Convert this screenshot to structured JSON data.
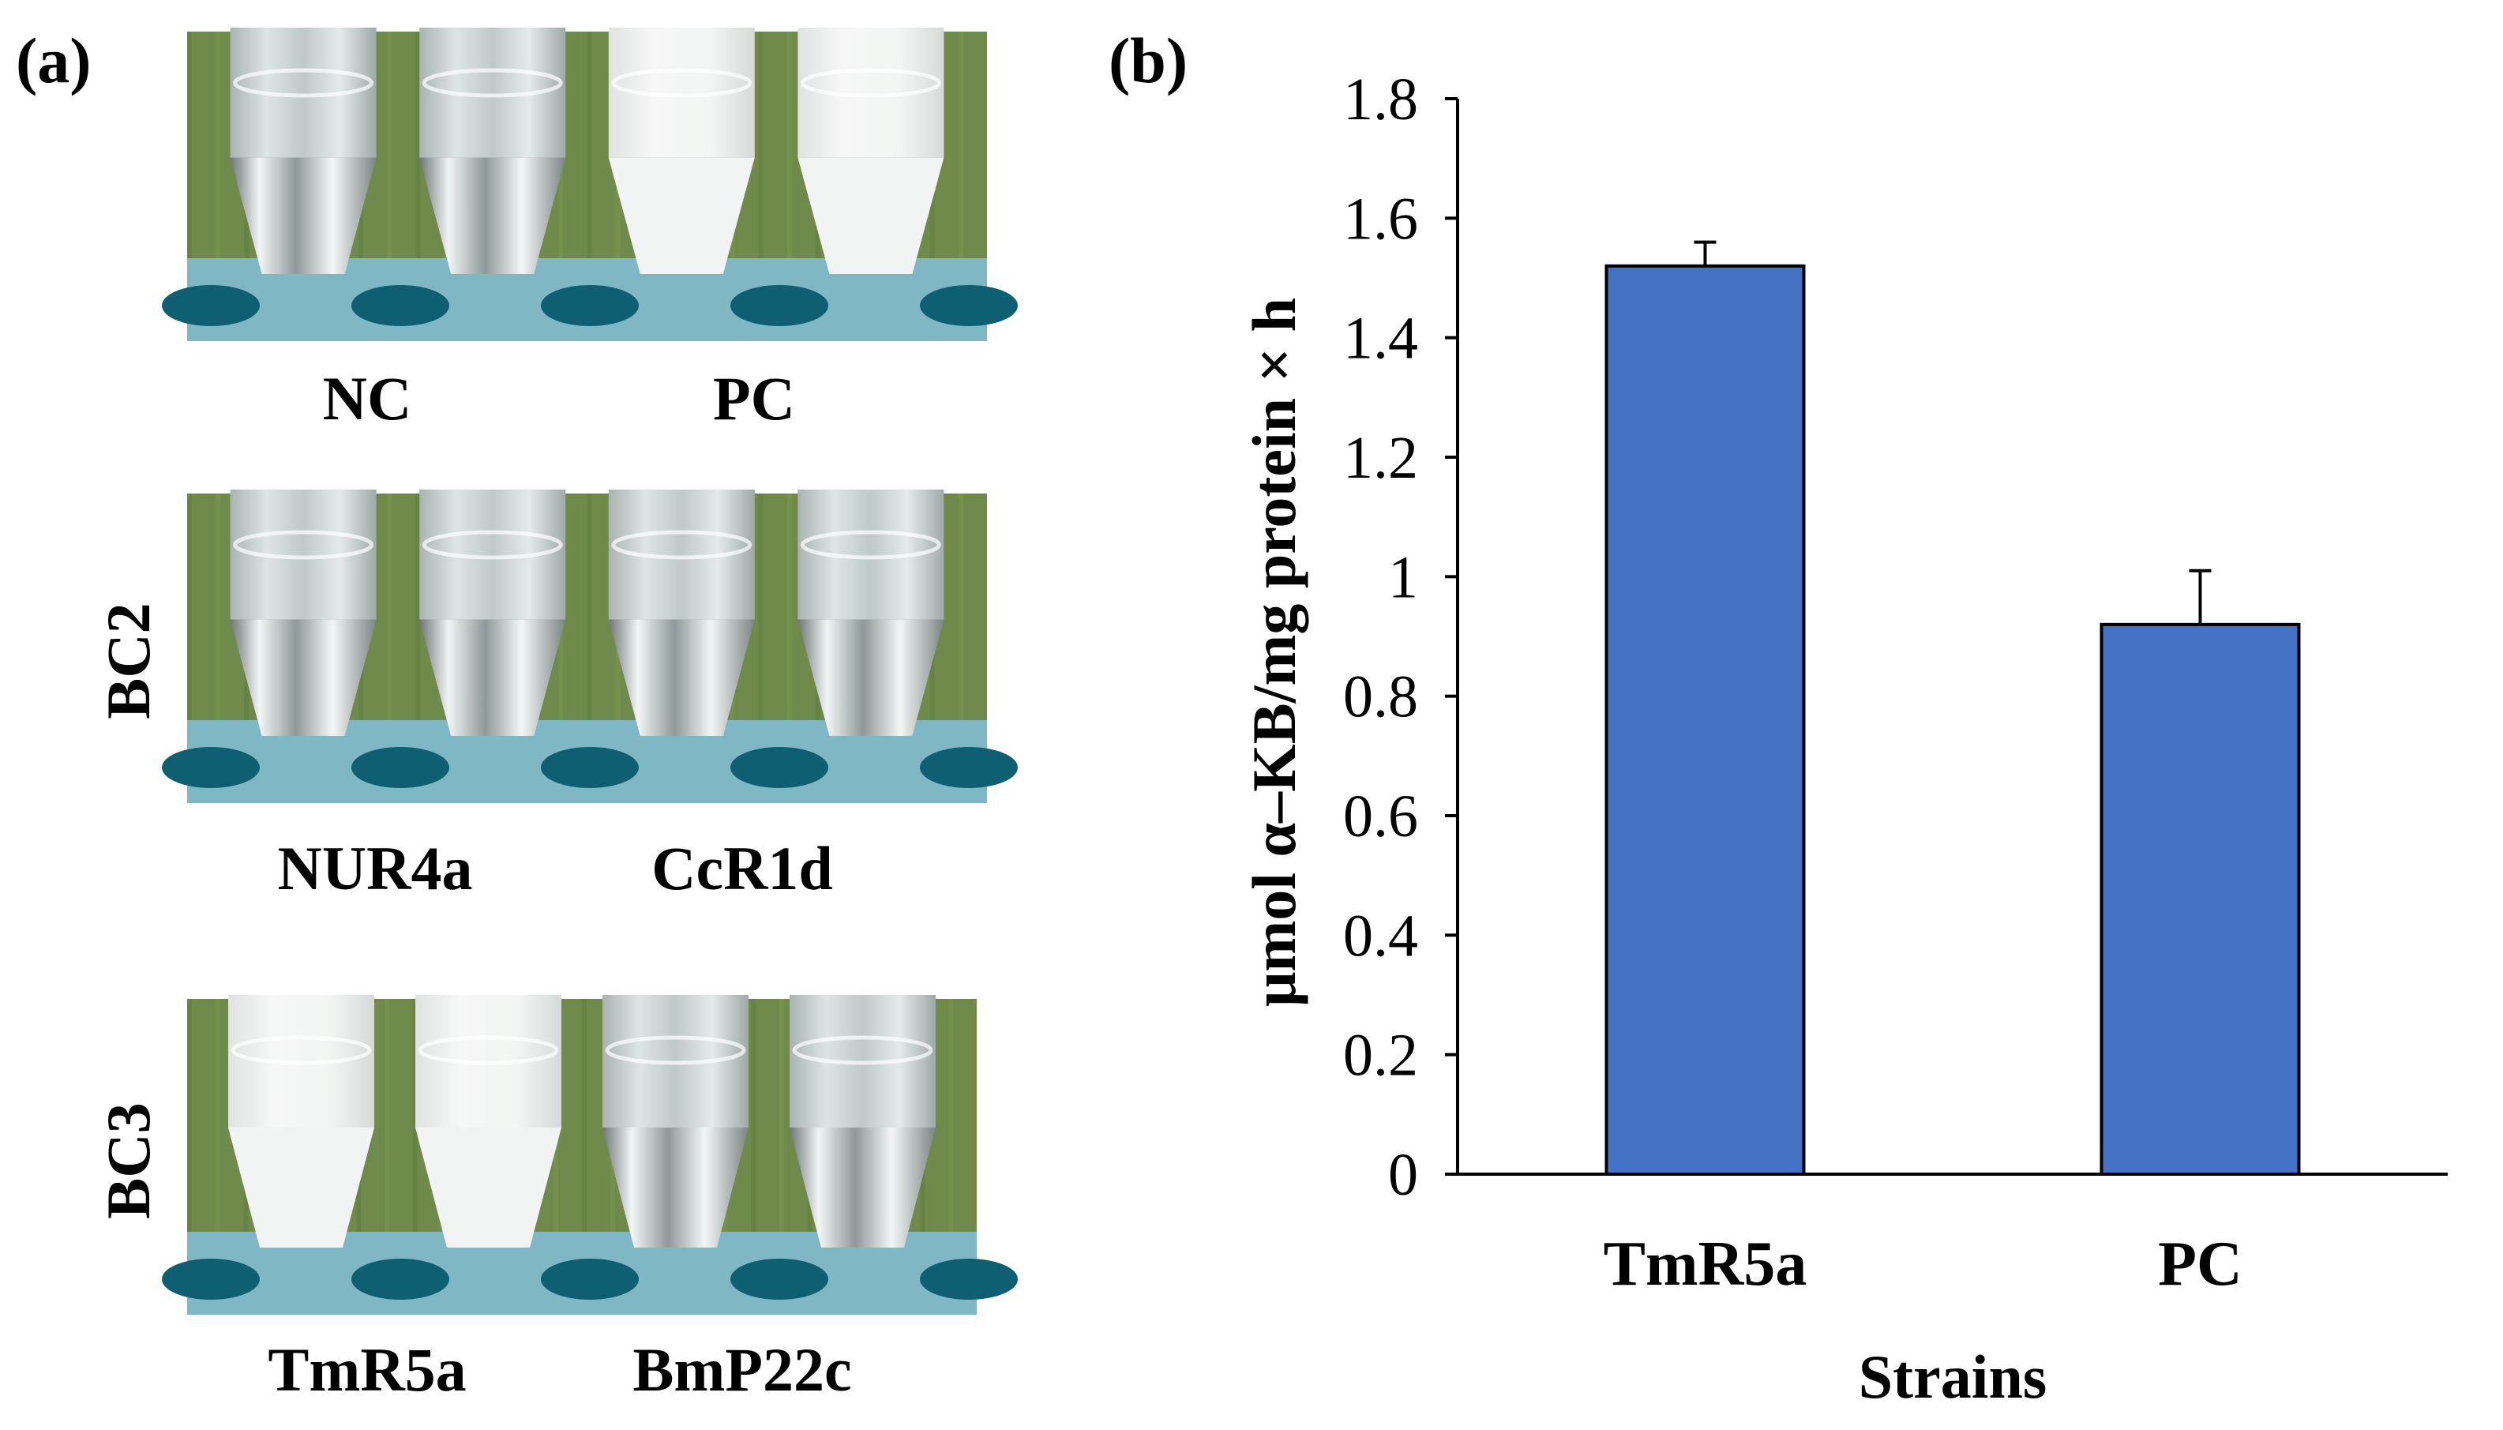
{
  "panel_a": {
    "label": "(a)",
    "rows": [
      {
        "row_label": "",
        "captions": [
          "NC",
          "PC"
        ],
        "tubes": [
          "clear",
          "clear",
          "turbid",
          "turbid"
        ]
      },
      {
        "row_label": "BC2",
        "captions": [
          "NUR4a",
          "CcR1d"
        ],
        "tubes": [
          "clear",
          "clear",
          "clear",
          "clear"
        ]
      },
      {
        "row_label": "BC3",
        "captions": [
          "TmR5a",
          "BmP22c"
        ],
        "tubes": [
          "turbid",
          "turbid",
          "clear",
          "clear"
        ]
      }
    ],
    "colors": {
      "grass": "#6f8a4a",
      "rack": "#0f5f72",
      "tube_clear": "#c9d3d2",
      "tube_turbid": "#eef1ef"
    }
  },
  "panel_b": {
    "label": "(b)"
  },
  "chart_data": {
    "type": "bar",
    "categories": [
      "TmR5a",
      "PC"
    ],
    "values": [
      1.52,
      0.92
    ],
    "error": [
      0.04,
      0.09
    ],
    "xlabel": "Strains",
    "ylabel": "μmol α–KB/mg protein × h",
    "ylim": [
      0,
      1.8
    ],
    "yticks": [
      "0",
      "0.2",
      "0.4",
      "0.6",
      "0.8",
      "1",
      "1.2",
      "1.4",
      "1.6",
      "1.8"
    ],
    "bar_color": "#4472c4",
    "grid": false,
    "legend": "none"
  }
}
